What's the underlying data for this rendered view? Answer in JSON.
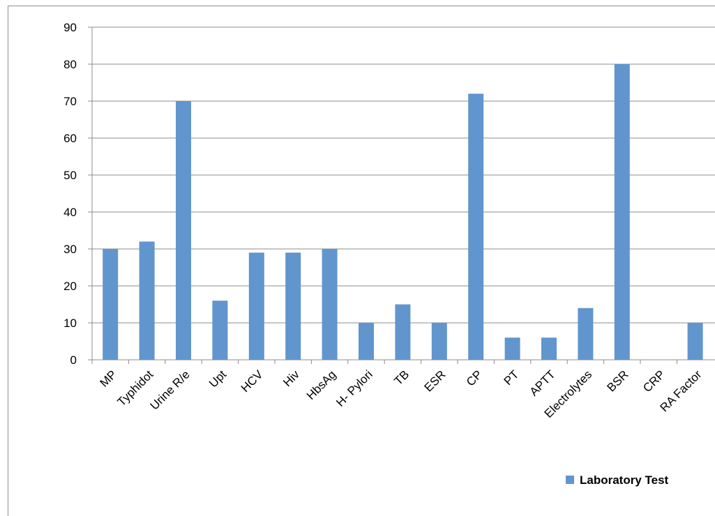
{
  "chart_data": {
    "type": "bar",
    "categories": [
      "MP",
      "Typhidot",
      "Urine R/e",
      "Upt",
      "HCV",
      "Hiv",
      "HbsAg",
      "H- Pylori",
      "TB",
      "ESR",
      "CP",
      "PT",
      "APTT",
      "Electrolytes",
      "BSR",
      "CRP",
      "RA Factor"
    ],
    "series": [
      {
        "name": "Laboratory Test",
        "values": [
          30,
          32,
          70,
          16,
          29,
          29,
          30,
          10,
          15,
          10,
          72,
          6,
          6,
          14,
          80,
          0,
          10
        ],
        "color": "#6195cd"
      }
    ],
    "y_ticks": [
      "0",
      "10",
      "20",
      "30",
      "40",
      "50",
      "60",
      "70",
      "80",
      "90"
    ],
    "ylim": [
      0,
      90
    ],
    "grid": true,
    "legend": {
      "position": "bottom-right",
      "label": "Laboratory Test"
    },
    "colors": {
      "bar": "#6195cd",
      "gridline": "#8c8c8c",
      "axis": "#8c8c8c",
      "text": "#000000"
    }
  }
}
